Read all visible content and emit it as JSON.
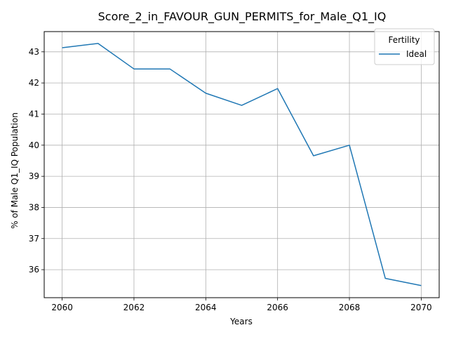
{
  "chart_data": {
    "type": "line",
    "title": "Score_2_in_FAVOUR_GUN_PERMITS_for_Male_Q1_IQ",
    "xlabel": "Years",
    "ylabel": "% of Male Q1_IQ Population",
    "x": [
      2060,
      2061,
      2062,
      2063,
      2064,
      2065,
      2066,
      2067,
      2068,
      2069,
      2070
    ],
    "xlim": [
      2059.5,
      2070.5
    ],
    "ylim": [
      35.1,
      43.65
    ],
    "xticks": [
      2060,
      2062,
      2064,
      2066,
      2068,
      2070
    ],
    "yticks": [
      36,
      37,
      38,
      39,
      40,
      41,
      42,
      43
    ],
    "grid": true,
    "legend": {
      "title": "Fertility",
      "placement": "top-right"
    },
    "series": [
      {
        "name": "Ideal",
        "color": "#1f77b4",
        "values": [
          43.13,
          43.27,
          42.45,
          42.45,
          41.67,
          41.28,
          41.82,
          39.66,
          40.0,
          35.72,
          35.49
        ]
      }
    ]
  }
}
